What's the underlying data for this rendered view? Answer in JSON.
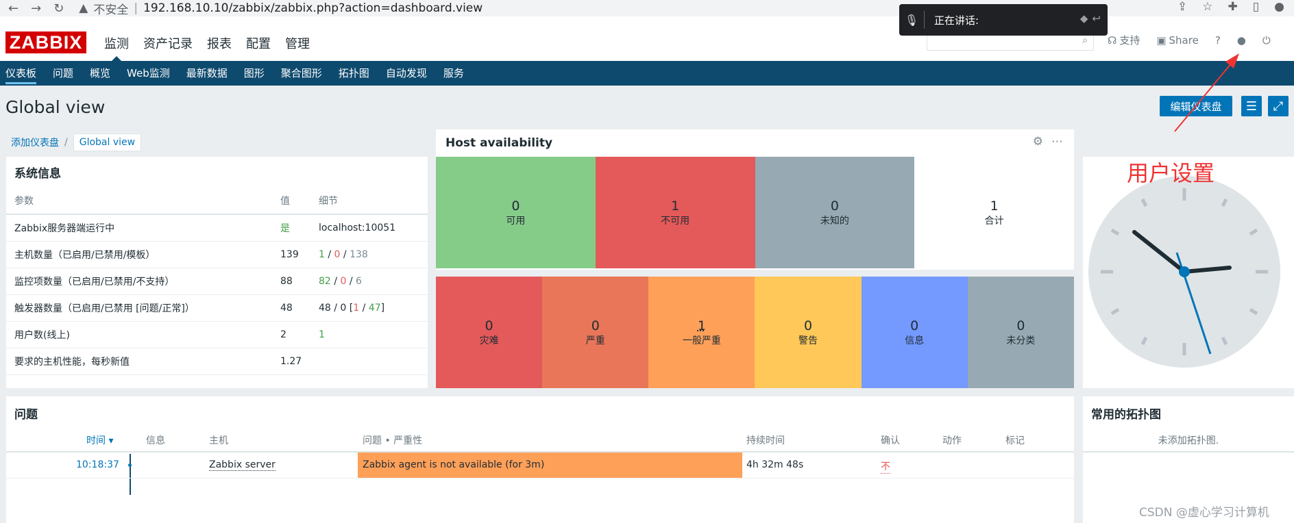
{
  "browser": {
    "insecure_label": "不安全",
    "url": "192.168.10.10/zabbix/zabbix.php?action=dashboard.view"
  },
  "speaking_popup": {
    "label": "正在讲话:"
  },
  "header": {
    "logo": "ZABBIX",
    "menu": [
      "监测",
      "资产记录",
      "报表",
      "配置",
      "管理"
    ],
    "links": {
      "support": "支持",
      "share": "Share",
      "help": "?"
    }
  },
  "submenu": [
    "仪表板",
    "问题",
    "概览",
    "Web监测",
    "最新数据",
    "图形",
    "聚合图形",
    "拓扑图",
    "自动发现",
    "服务"
  ],
  "page": {
    "title": "Global view",
    "edit_button": "编辑仪表盘",
    "breadcrumb": {
      "parent": "添加仪表盘",
      "separator": "/",
      "current": "Global view"
    }
  },
  "sysinfo": {
    "title": "系统信息",
    "headers": {
      "param": "参数",
      "value": "值",
      "detail": "细节"
    },
    "rows": [
      {
        "param": "Zabbix服务器端运行中",
        "value": "是",
        "detail_a": "localhost:10051"
      },
      {
        "param": "主机数量（已启用/已禁用/模板）",
        "value": "139",
        "d1": "1",
        "d2": "0",
        "d3": "138",
        "sep": " / "
      },
      {
        "param": "监控项数量（已启用/已禁用/不支持）",
        "value": "88",
        "d1": "82",
        "d2": "0",
        "d3": "6",
        "sep": " / "
      },
      {
        "param": "触发器数量（已启用/已禁用 [问题/正常]）",
        "value": "48",
        "detail_prefix": "48 / 0 [",
        "d1": "1",
        "d2": "47",
        "detail_suffix": "]"
      },
      {
        "param": "用户数(线上)",
        "value": "2",
        "d1": "1"
      },
      {
        "param": "要求的主机性能，每秒新值",
        "value": "1.27"
      }
    ]
  },
  "host_availability": {
    "title": "Host availability",
    "cells": [
      {
        "count": "0",
        "label": "可用",
        "color": "#86cc89"
      },
      {
        "count": "1",
        "label": "不可用",
        "color": "#e45959"
      },
      {
        "count": "0",
        "label": "未知的",
        "color": "#97aab3"
      },
      {
        "count": "1",
        "label": "合计",
        "color": "#ffffff"
      }
    ]
  },
  "severity": [
    {
      "count": "0",
      "label": "灾难",
      "color": "#e45959"
    },
    {
      "count": "0",
      "label": "严重",
      "color": "#e97659"
    },
    {
      "count": "1",
      "label": "一般严重",
      "color": "#ffa059"
    },
    {
      "count": "0",
      "label": "警告",
      "color": "#ffc859"
    },
    {
      "count": "0",
      "label": "信息",
      "color": "#7499ff"
    },
    {
      "count": "0",
      "label": "未分类",
      "color": "#97aab3"
    }
  ],
  "annotation": {
    "text": "用户设置",
    "color": "#ee3333"
  },
  "problems": {
    "title": "问题",
    "headers": {
      "time": "时间 ▾",
      "info": "信息",
      "host": "主机",
      "problem": "问题 • 严重性",
      "duration": "持续时间",
      "ack": "确认",
      "actions": "动作",
      "tags": "标记"
    },
    "rows": [
      {
        "time": "10:18:37",
        "host": "Zabbix server",
        "problem": "Zabbix agent is not available (for 3m)",
        "duration": "4h 32m 48s",
        "ack": "不"
      }
    ]
  },
  "maps": {
    "title": "常用的拓扑图",
    "empty": "未添加拓扑图."
  },
  "watermark": "CSDN @虚心学习计算机"
}
